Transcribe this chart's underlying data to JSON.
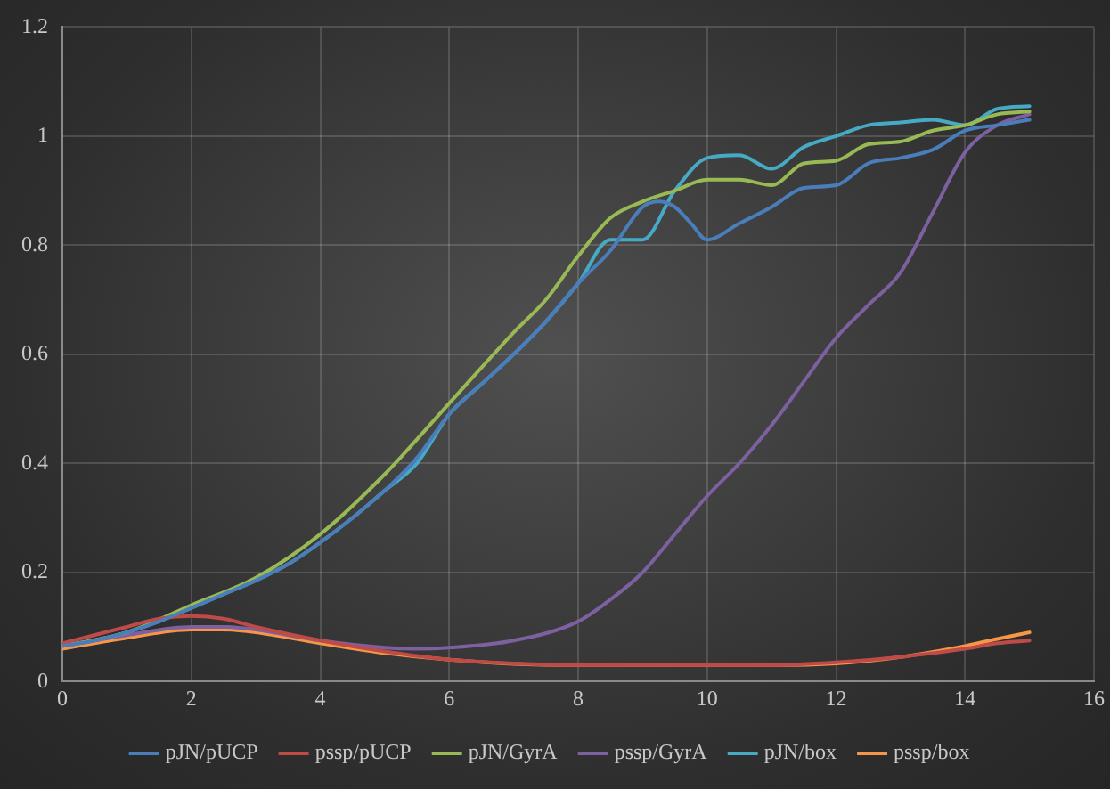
{
  "chart_data": {
    "type": "line",
    "xlim": [
      0,
      16
    ],
    "xticks": [
      0,
      2,
      4,
      6,
      8,
      10,
      12,
      14,
      16
    ],
    "ylim": [
      0,
      1.2
    ],
    "yticks": [
      0,
      0.2,
      0.4,
      0.6,
      0.8,
      1,
      1.2
    ],
    "grid": true,
    "legend": "bottom",
    "marker": "none",
    "line_style": "solid",
    "series": [
      {
        "name": "pJN/pUCP",
        "color": "#4a7ebb",
        "x": [
          0,
          0.5,
          1,
          1.5,
          2,
          2.5,
          3,
          3.5,
          4,
          4.5,
          5,
          5.5,
          6,
          6.5,
          7,
          7.5,
          8,
          8.5,
          9,
          9.25,
          9.5,
          9.75,
          10,
          10.5,
          11,
          11.5,
          12,
          12.5,
          13,
          13.5,
          14,
          14.5,
          15
        ],
        "values": [
          0.065,
          0.075,
          0.09,
          0.11,
          0.135,
          0.16,
          0.185,
          0.215,
          0.255,
          0.3,
          0.35,
          0.41,
          0.49,
          0.545,
          0.6,
          0.66,
          0.73,
          0.79,
          0.87,
          0.88,
          0.87,
          0.84,
          0.81,
          0.84,
          0.87,
          0.905,
          0.91,
          0.95,
          0.96,
          0.975,
          1.01,
          1.02,
          1.03
        ]
      },
      {
        "name": "pssp/pUCP",
        "color": "#be4b48",
        "x": [
          0,
          1,
          1.5,
          2,
          2.5,
          3,
          4,
          5,
          6,
          7,
          8,
          9,
          10,
          11,
          12,
          13,
          14,
          14.5,
          15
        ],
        "values": [
          0.07,
          0.1,
          0.115,
          0.12,
          0.115,
          0.1,
          0.075,
          0.055,
          0.04,
          0.033,
          0.03,
          0.03,
          0.03,
          0.03,
          0.035,
          0.045,
          0.06,
          0.07,
          0.075
        ]
      },
      {
        "name": "pJN/GyrA",
        "color": "#98b954",
        "x": [
          0,
          1,
          2,
          3,
          4,
          5,
          6,
          7,
          7.5,
          8,
          8.5,
          9,
          9.5,
          10,
          10.5,
          11,
          11.5,
          12,
          12.5,
          13,
          13.5,
          14,
          14.5,
          15
        ],
        "values": [
          0.065,
          0.09,
          0.14,
          0.19,
          0.27,
          0.38,
          0.51,
          0.64,
          0.7,
          0.78,
          0.85,
          0.88,
          0.9,
          0.92,
          0.92,
          0.91,
          0.95,
          0.955,
          0.985,
          0.99,
          1.01,
          1.02,
          1.04,
          1.045
        ]
      },
      {
        "name": "pssp/GyrA",
        "color": "#7d60a0",
        "x": [
          0,
          1,
          2,
          2.5,
          3,
          4,
          5,
          5.5,
          6,
          7,
          8,
          8.5,
          9,
          9.5,
          10,
          10.5,
          11,
          11.5,
          12,
          12.5,
          13,
          13.5,
          14,
          14.5,
          15
        ],
        "values": [
          0.065,
          0.085,
          0.1,
          0.1,
          0.095,
          0.075,
          0.062,
          0.06,
          0.062,
          0.075,
          0.11,
          0.15,
          0.2,
          0.27,
          0.34,
          0.4,
          0.47,
          0.55,
          0.63,
          0.69,
          0.75,
          0.86,
          0.97,
          1.02,
          1.04
        ]
      },
      {
        "name": "pJN/box",
        "color": "#46aac5",
        "x": [
          0,
          0.5,
          1,
          1.5,
          2,
          2.5,
          3,
          3.5,
          4,
          4.5,
          5,
          5.5,
          6,
          6.5,
          7,
          7.5,
          8,
          8.5,
          9,
          9.5,
          10,
          10.5,
          11,
          11.5,
          12,
          12.5,
          13,
          13.5,
          14,
          14.5,
          15
        ],
        "values": [
          0.065,
          0.075,
          0.09,
          0.11,
          0.135,
          0.16,
          0.185,
          0.215,
          0.255,
          0.3,
          0.35,
          0.4,
          0.49,
          0.545,
          0.6,
          0.66,
          0.73,
          0.81,
          0.81,
          0.9,
          0.96,
          0.965,
          0.94,
          0.98,
          1.0,
          1.02,
          1.025,
          1.03,
          1.02,
          1.05,
          1.055
        ]
      },
      {
        "name": "pssp/box",
        "color": "#f79646",
        "x": [
          0,
          1,
          2,
          2.5,
          3,
          4,
          5,
          6,
          7,
          8,
          9,
          10,
          11,
          12,
          13,
          14,
          14.5,
          15
        ],
        "values": [
          0.06,
          0.08,
          0.095,
          0.095,
          0.09,
          0.07,
          0.052,
          0.04,
          0.032,
          0.03,
          0.03,
          0.03,
          0.03,
          0.033,
          0.045,
          0.065,
          0.078,
          0.09
        ]
      }
    ]
  }
}
